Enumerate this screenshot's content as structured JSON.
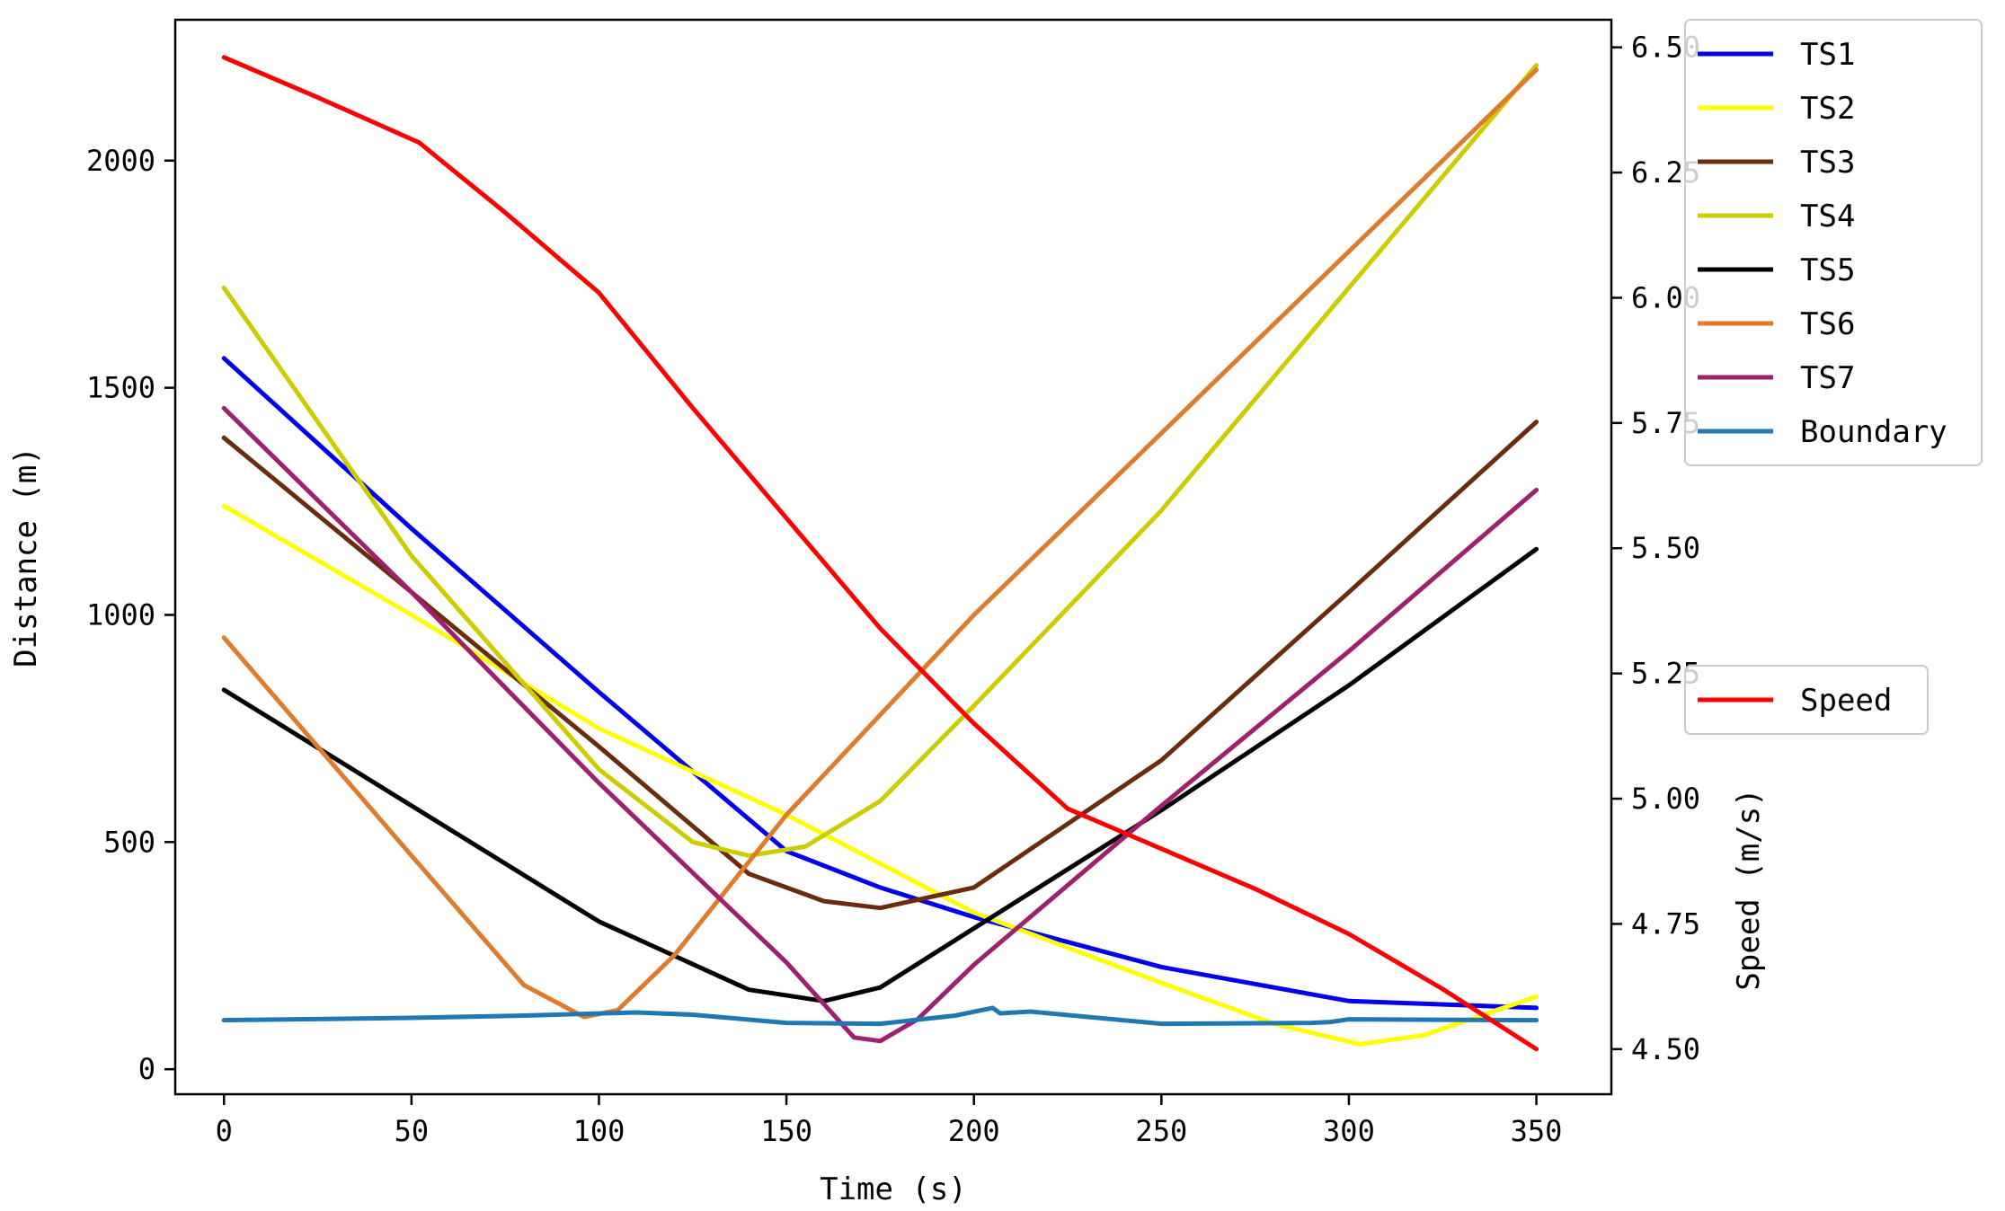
{
  "chart_data": {
    "type": "line",
    "title": "",
    "xlabel": "Time (s)",
    "ylabel": "Distance (m)",
    "y2label": "Speed (m/s)",
    "xlim": [
      -13,
      370
    ],
    "ylim": [
      -55,
      2310
    ],
    "y2lim": [
      4.41,
      6.555
    ],
    "x_ticks": [
      0,
      50,
      100,
      150,
      200,
      250,
      300,
      350
    ],
    "y_ticks": [
      0,
      500,
      1000,
      1500,
      2000
    ],
    "y2_ticks": [
      "4.50",
      "4.75",
      "5.00",
      "5.25",
      "5.50",
      "5.75",
      "6.00",
      "6.25",
      "6.50"
    ],
    "grid": false,
    "legend_distance": "top-right",
    "legend_speed": "right",
    "series": [
      {
        "name": "TS1",
        "axis": "left",
        "color": "#0000ee",
        "points": [
          [
            0,
            1565
          ],
          [
            50,
            1190
          ],
          [
            100,
            830
          ],
          [
            150,
            480
          ],
          [
            175,
            400
          ],
          [
            200,
            335
          ],
          [
            250,
            225
          ],
          [
            300,
            150
          ],
          [
            350,
            135
          ]
        ]
      },
      {
        "name": "TS2",
        "axis": "left",
        "color": "#ffff00",
        "points": [
          [
            0,
            1240
          ],
          [
            50,
            1000
          ],
          [
            100,
            750
          ],
          [
            150,
            560
          ],
          [
            200,
            345
          ],
          [
            250,
            190
          ],
          [
            280,
            100
          ],
          [
            303,
            55
          ],
          [
            320,
            75
          ],
          [
            350,
            160
          ]
        ]
      },
      {
        "name": "TS3",
        "axis": "left",
        "color": "#6b2c0c",
        "points": [
          [
            0,
            1390
          ],
          [
            50,
            1050
          ],
          [
            100,
            710
          ],
          [
            140,
            430
          ],
          [
            160,
            370
          ],
          [
            175,
            355
          ],
          [
            200,
            400
          ],
          [
            250,
            680
          ],
          [
            300,
            1050
          ],
          [
            350,
            1425
          ]
        ]
      },
      {
        "name": "TS4",
        "axis": "left",
        "color": "#cccc00",
        "points": [
          [
            0,
            1720
          ],
          [
            50,
            1130
          ],
          [
            100,
            660
          ],
          [
            125,
            500
          ],
          [
            140,
            470
          ],
          [
            155,
            490
          ],
          [
            175,
            590
          ],
          [
            200,
            800
          ],
          [
            250,
            1230
          ],
          [
            300,
            1720
          ],
          [
            350,
            2210
          ]
        ]
      },
      {
        "name": "TS5",
        "axis": "left",
        "color": "#000000",
        "points": [
          [
            0,
            835
          ],
          [
            50,
            580
          ],
          [
            100,
            325
          ],
          [
            140,
            175
          ],
          [
            160,
            150
          ],
          [
            175,
            180
          ],
          [
            200,
            310
          ],
          [
            250,
            570
          ],
          [
            300,
            845
          ],
          [
            350,
            1145
          ]
        ]
      },
      {
        "name": "TS6",
        "axis": "left",
        "color": "#e07b2c",
        "points": [
          [
            0,
            950
          ],
          [
            50,
            470
          ],
          [
            80,
            185
          ],
          [
            96,
            115
          ],
          [
            105,
            130
          ],
          [
            120,
            250
          ],
          [
            150,
            560
          ],
          [
            200,
            1000
          ],
          [
            250,
            1400
          ],
          [
            300,
            1800
          ],
          [
            350,
            2200
          ]
        ]
      },
      {
        "name": "TS7",
        "axis": "left",
        "color": "#a0206e",
        "points": [
          [
            0,
            1455
          ],
          [
            50,
            1050
          ],
          [
            100,
            630
          ],
          [
            150,
            235
          ],
          [
            168,
            70
          ],
          [
            175,
            62
          ],
          [
            185,
            110
          ],
          [
            200,
            230
          ],
          [
            250,
            580
          ],
          [
            300,
            920
          ],
          [
            350,
            1275
          ]
        ]
      },
      {
        "name": "Boundary",
        "axis": "left",
        "color": "#1f77b4",
        "points": [
          [
            0,
            108
          ],
          [
            50,
            113
          ],
          [
            80,
            118
          ],
          [
            110,
            125
          ],
          [
            125,
            120
          ],
          [
            150,
            102
          ],
          [
            175,
            100
          ],
          [
            195,
            118
          ],
          [
            205,
            135
          ],
          [
            207,
            123
          ],
          [
            215,
            127
          ],
          [
            250,
            100
          ],
          [
            290,
            102
          ],
          [
            295,
            104
          ],
          [
            300,
            110
          ],
          [
            350,
            108
          ]
        ]
      },
      {
        "name": "Speed",
        "axis": "right",
        "color": "#ff0000",
        "points": [
          [
            0,
            6.48
          ],
          [
            25,
            6.4
          ],
          [
            52,
            6.31
          ],
          [
            75,
            6.17
          ],
          [
            100,
            6.01
          ],
          [
            125,
            5.78
          ],
          [
            150,
            5.56
          ],
          [
            175,
            5.34
          ],
          [
            200,
            5.15
          ],
          [
            225,
            4.98
          ],
          [
            250,
            4.9
          ],
          [
            275,
            4.82
          ],
          [
            300,
            4.73
          ],
          [
            325,
            4.62
          ],
          [
            350,
            4.5
          ]
        ]
      }
    ]
  }
}
